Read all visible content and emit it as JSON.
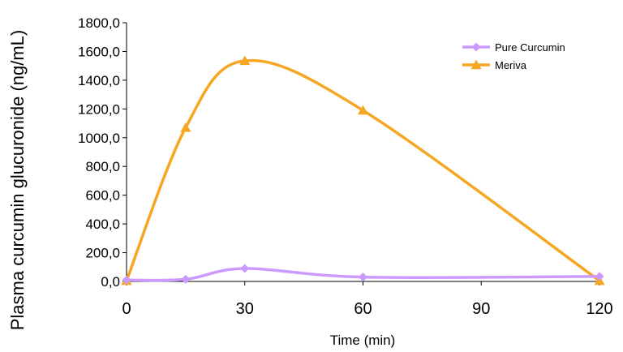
{
  "chart_data": {
    "type": "line",
    "title": "",
    "xlabel": "Time (min)",
    "ylabel": "Plasma curcumin glucuronide (ng/mL)",
    "xlim": [
      0,
      120
    ],
    "ylim": [
      0,
      1800
    ],
    "x_ticks": [
      0,
      30,
      60,
      90,
      120
    ],
    "x_tick_labels": [
      "0",
      "30",
      "60",
      "90",
      "120"
    ],
    "y_ticks": [
      0,
      200,
      400,
      600,
      800,
      1000,
      1200,
      1400,
      1600,
      1800
    ],
    "y_tick_labels": [
      "0,0",
      "200,0",
      "400,0",
      "600,0",
      "800,0",
      "1000,0",
      "1200,0",
      "1400,0",
      "1600,0",
      "1800,0"
    ],
    "grid": false,
    "legend_position": "top-right",
    "series": [
      {
        "name": "Pure Curcumin",
        "color": "#cc99ff",
        "marker": "diamond",
        "x": [
          0,
          15,
          30,
          60,
          120
        ],
        "values": [
          10,
          15,
          90,
          30,
          35
        ]
      },
      {
        "name": "Meriva",
        "color": "#f5a623",
        "marker": "triangle",
        "x": [
          0,
          15,
          30,
          60,
          120
        ],
        "values": [
          5,
          1070,
          1535,
          1190,
          5
        ]
      }
    ]
  }
}
